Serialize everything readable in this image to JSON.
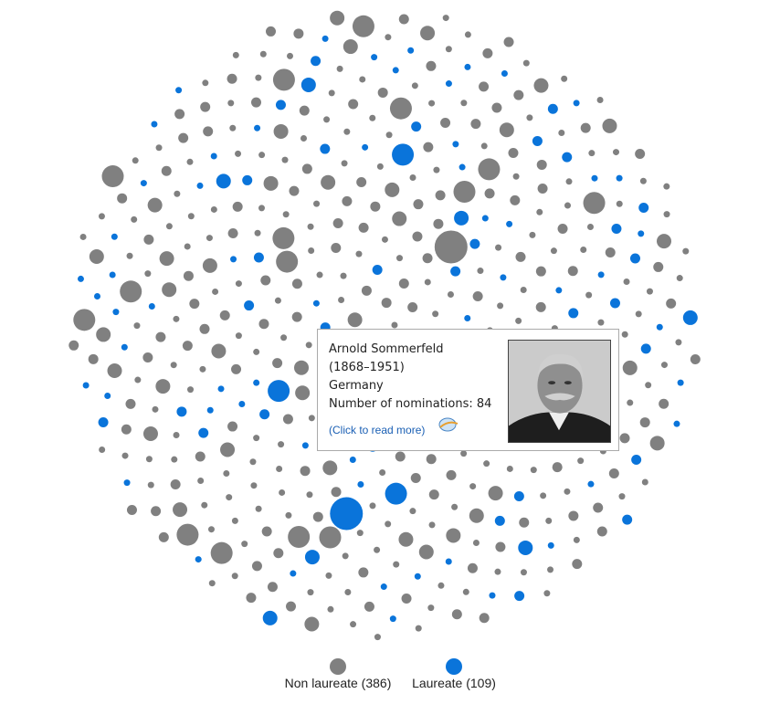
{
  "legend": {
    "items": [
      {
        "label": "Non laureate (386)",
        "count": 386,
        "color": "#808080"
      },
      {
        "label": "Laureate (109)",
        "count": 109,
        "color": "#0a74da"
      }
    ]
  },
  "tooltip": {
    "name": "Arnold Sommerfeld",
    "years": "(1868–1951)",
    "country": "Germany",
    "nominations": "Number of nominations: 84",
    "link": "(Click to read more)"
  }
}
